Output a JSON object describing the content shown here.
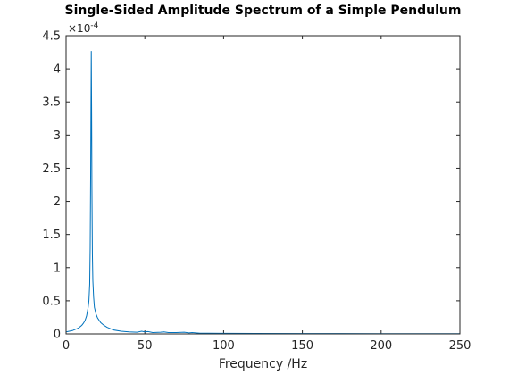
{
  "chart_data": {
    "type": "line",
    "title": "Single-Sided Amplitude Spectrum of a Simple Pendulum",
    "xlabel": "Frequency /Hz",
    "ylabel": "",
    "xlim": [
      0,
      250
    ],
    "ylim": [
      0,
      4.5
    ],
    "y_exponent_label": "×10",
    "y_exponent_power": "-4",
    "x_ticks": [
      0,
      50,
      100,
      150,
      200,
      250
    ],
    "x_tick_labels": [
      "0",
      "50",
      "100",
      "150",
      "200",
      "250"
    ],
    "y_ticks": [
      0,
      0.5,
      1,
      1.5,
      2,
      2.5,
      3,
      3.5,
      4,
      4.5
    ],
    "y_tick_labels": [
      "0",
      "0.5",
      "1",
      "1.5",
      "2",
      "2.5",
      "3",
      "3.5",
      "4",
      "4.5"
    ],
    "grid": false,
    "line_color": "#0072BD",
    "series": [
      {
        "x": [
          0,
          2,
          4,
          6,
          8,
          10,
          11,
          12,
          13,
          14,
          14.5,
          15,
          15.3,
          15.6,
          15.8,
          16,
          16.2,
          16.4,
          16.7,
          17,
          17.5,
          18,
          19,
          20,
          22,
          24,
          26,
          28,
          30,
          35,
          40,
          45,
          48,
          50,
          52,
          55,
          60,
          62,
          65,
          70,
          75,
          78,
          80,
          85,
          90,
          100,
          120,
          150,
          200,
          250
        ],
        "y": [
          0.03,
          0.04,
          0.05,
          0.07,
          0.09,
          0.13,
          0.16,
          0.2,
          0.27,
          0.4,
          0.5,
          0.75,
          1.3,
          2.4,
          3.4,
          4.27,
          3.37,
          2.2,
          1.2,
          0.8,
          0.55,
          0.4,
          0.3,
          0.24,
          0.17,
          0.13,
          0.1,
          0.08,
          0.06,
          0.04,
          0.03,
          0.025,
          0.04,
          0.03,
          0.035,
          0.02,
          0.025,
          0.03,
          0.02,
          0.02,
          0.025,
          0.015,
          0.02,
          0.01,
          0.01,
          0.008,
          0.006,
          0.005,
          0.004,
          0.003
        ]
      }
    ]
  }
}
